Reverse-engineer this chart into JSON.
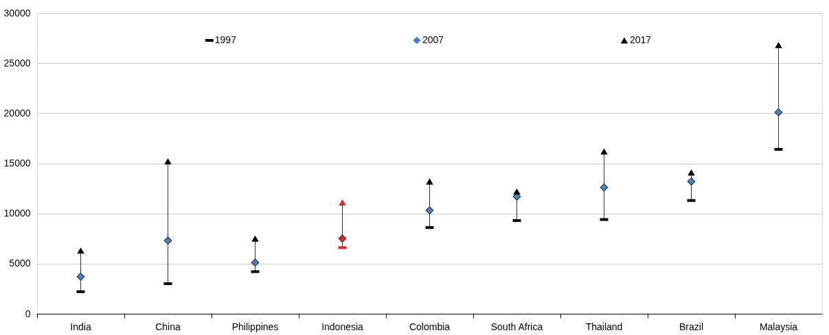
{
  "chart_data": {
    "type": "scatter",
    "categories": [
      "India",
      "China",
      "Philippines",
      "Indonesia",
      "Colombia",
      "South Africa",
      "Thailand",
      "Brazil",
      "Malaysia"
    ],
    "ylim": [
      0,
      30000
    ],
    "yticks": [
      0,
      5000,
      10000,
      15000,
      20000,
      25000,
      30000
    ],
    "grid": "y",
    "legend": "top",
    "series": [
      {
        "name": "1997",
        "color": "#000000",
        "colors": [
          "#000000",
          "#000000",
          "#000000",
          "#e0242b",
          "#000000",
          "#000000",
          "#000000",
          "#000000",
          "#000000"
        ],
        "values": [
          2200,
          3000,
          4200,
          6600,
          8600,
          9300,
          9400,
          11300,
          16400
        ]
      },
      {
        "name": "2007",
        "marker": "diamond",
        "color": "#4a7ebb",
        "colors": [
          "#4a7ebb",
          "#4a7ebb",
          "#4a7ebb",
          "#e0242b",
          "#4a7ebb",
          "#4a7ebb",
          "#4a7ebb",
          "#4a7ebb",
          "#4a7ebb"
        ],
        "values": [
          3700,
          7300,
          5100,
          7500,
          10300,
          11700,
          12600,
          13200,
          20100
        ]
      },
      {
        "name": "2017",
        "marker": "triangle",
        "color": "#000000",
        "colors": [
          "#000000",
          "#000000",
          "#000000",
          "#e0242b",
          "#000000",
          "#000000",
          "#000000",
          "#000000",
          "#000000"
        ],
        "values": [
          6300,
          15200,
          7500,
          11100,
          13200,
          12200,
          16200,
          14100,
          26800
        ]
      }
    ]
  }
}
